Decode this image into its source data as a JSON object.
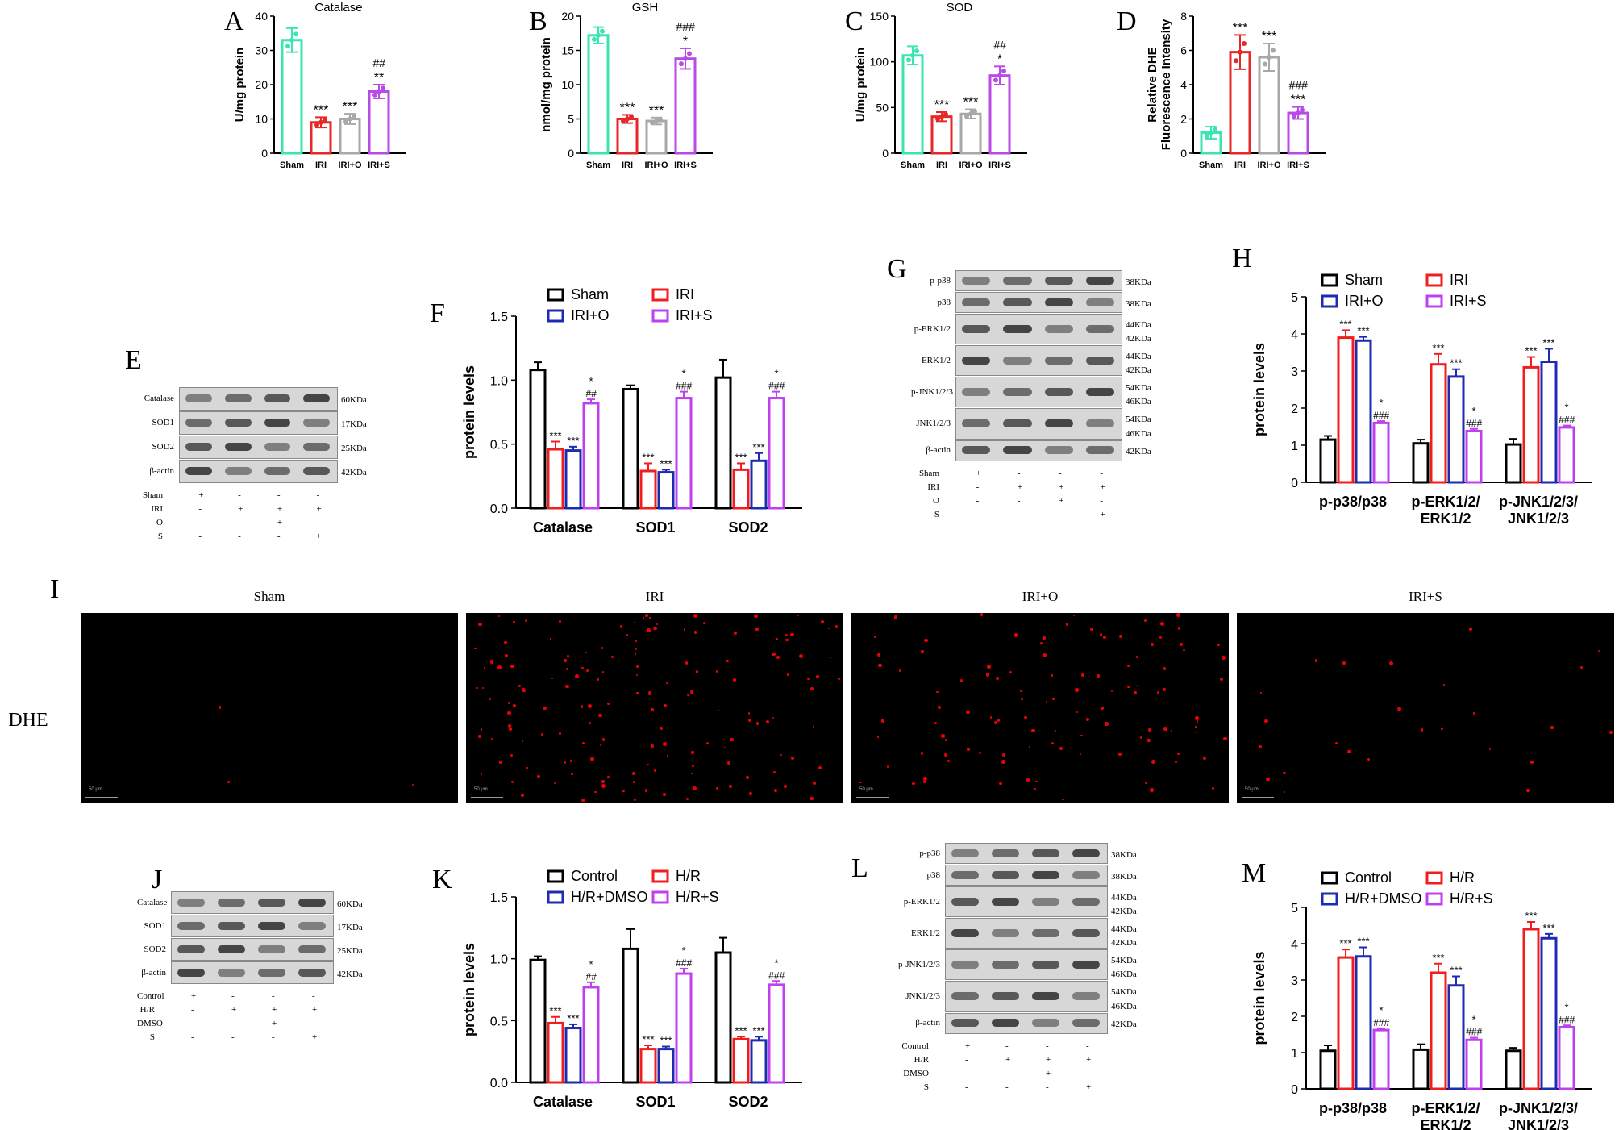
{
  "panels": {
    "A": {
      "letter": "A",
      "title": "Catalase",
      "ylabel": "U/mg protein",
      "ylim": [
        0,
        40
      ],
      "ticks": [
        0,
        10,
        20,
        30,
        40
      ],
      "categories": [
        "Sham",
        "IRI",
        "IRI+O",
        "IRI+S"
      ],
      "values": [
        33,
        9,
        10,
        18
      ],
      "err": [
        3.5,
        1.5,
        1.5,
        2
      ],
      "sig": [
        [
          "",
          ""
        ],
        [
          "***",
          ""
        ],
        [
          "***",
          ""
        ],
        [
          "**",
          "##"
        ]
      ]
    },
    "B": {
      "letter": "B",
      "title": "GSH",
      "ylabel": "nmol/mg protein",
      "ylim": [
        0,
        20
      ],
      "ticks": [
        0,
        5,
        10,
        15,
        20
      ],
      "categories": [
        "Sham",
        "IRI",
        "IRI+O",
        "IRI+S"
      ],
      "values": [
        17.2,
        5,
        4.7,
        13.8
      ],
      "err": [
        1.2,
        0.6,
        0.5,
        1.5
      ],
      "sig": [
        [
          "",
          ""
        ],
        [
          "***",
          ""
        ],
        [
          "***",
          ""
        ],
        [
          "*",
          "###"
        ]
      ]
    },
    "C": {
      "letter": "C",
      "title": "SOD",
      "ylabel": "U/mg protein",
      "ylim": [
        0,
        150
      ],
      "ticks": [
        0,
        50,
        100,
        150
      ],
      "categories": [
        "Sham",
        "IRI",
        "IRI+O",
        "IRI+S"
      ],
      "values": [
        107,
        40,
        43,
        85
      ],
      "err": [
        10,
        5,
        5,
        10
      ],
      "sig": [
        [
          "",
          ""
        ],
        [
          "***",
          ""
        ],
        [
          "***",
          ""
        ],
        [
          "*",
          "##"
        ]
      ]
    },
    "D": {
      "letter": "D",
      "title": "",
      "ylabel": "Relative DHE\nFluorescence Intensity",
      "ylim": [
        0,
        8
      ],
      "ticks": [
        0,
        2,
        4,
        6,
        8
      ],
      "categories": [
        "Sham",
        "IRI",
        "IRI+O",
        "IRI+S"
      ],
      "values": [
        1.2,
        5.9,
        5.6,
        2.35
      ],
      "err": [
        0.35,
        1.0,
        0.8,
        0.35
      ],
      "sig": [
        [
          "",
          ""
        ],
        [
          "***",
          ""
        ],
        [
          "***",
          ""
        ],
        [
          "***",
          "###"
        ]
      ]
    },
    "F": {
      "letter": "F",
      "ylabel": "protein levels",
      "ylim": [
        0,
        1.5
      ],
      "ticks": [
        0.0,
        0.5,
        1.0,
        1.5
      ],
      "groups": [
        "Catalase",
        "SOD1",
        "SOD2"
      ],
      "legend": [
        "Sham",
        "IRI",
        "IRI+O",
        "IRI+S"
      ],
      "series": [
        [
          1.08,
          0.93,
          1.02
        ],
        [
          0.46,
          0.29,
          0.3
        ],
        [
          0.45,
          0.28,
          0.37
        ],
        [
          0.82,
          0.86,
          0.86
        ]
      ],
      "err": [
        [
          0.06,
          0.03,
          0.14
        ],
        [
          0.06,
          0.06,
          0.05
        ],
        [
          0.03,
          0.02,
          0.06
        ],
        [
          0.03,
          0.05,
          0.05
        ]
      ],
      "sig": [
        [
          [
            "",
            ""
          ],
          [
            "",
            ""
          ],
          [
            "",
            ""
          ]
        ],
        [
          [
            "***",
            ""
          ],
          [
            "***",
            ""
          ],
          [
            "***",
            ""
          ]
        ],
        [
          [
            "***",
            ""
          ],
          [
            "***",
            ""
          ],
          [
            "***",
            ""
          ]
        ],
        [
          [
            "*",
            "##"
          ],
          [
            "*",
            "###"
          ],
          [
            "*",
            "###"
          ]
        ]
      ]
    },
    "H": {
      "letter": "H",
      "ylabel": "protein levels",
      "ylim": [
        0,
        5
      ],
      "ticks": [
        0,
        1,
        2,
        3,
        4,
        5
      ],
      "groups": [
        "p-p38/p38",
        "p-ERK1/2/\nERK1/2",
        "p-JNK1/2/3/\nJNK1/2/3"
      ],
      "legend": [
        "Sham",
        "IRI",
        "IRI+O",
        "IRI+S"
      ],
      "series": [
        [
          1.15,
          1.05,
          1.02
        ],
        [
          3.9,
          3.18,
          3.1
        ],
        [
          3.82,
          2.85,
          3.25
        ],
        [
          1.6,
          1.38,
          1.48
        ]
      ],
      "err": [
        [
          0.1,
          0.1,
          0.15
        ],
        [
          0.2,
          0.28,
          0.28
        ],
        [
          0.1,
          0.2,
          0.35
        ],
        [
          0.05,
          0.06,
          0.05
        ]
      ],
      "sig": [
        [
          [
            "",
            ""
          ],
          [
            "",
            ""
          ],
          [
            "",
            ""
          ]
        ],
        [
          [
            "***",
            ""
          ],
          [
            "***",
            ""
          ],
          [
            "***",
            ""
          ]
        ],
        [
          [
            "***",
            ""
          ],
          [
            "***",
            ""
          ],
          [
            "***",
            ""
          ]
        ],
        [
          [
            "*",
            "###"
          ],
          [
            "*",
            "###"
          ],
          [
            "*",
            "###"
          ]
        ]
      ]
    },
    "K": {
      "letter": "K",
      "ylabel": "protein levels",
      "ylim": [
        0,
        1.5
      ],
      "ticks": [
        0.0,
        0.5,
        1.0,
        1.5
      ],
      "groups": [
        "Catalase",
        "SOD1",
        "SOD2"
      ],
      "legend": [
        "Control",
        "H/R",
        "H/R+DMSO",
        "H/R+S"
      ],
      "series": [
        [
          0.99,
          1.08,
          1.05
        ],
        [
          0.48,
          0.27,
          0.35
        ],
        [
          0.44,
          0.27,
          0.34
        ],
        [
          0.77,
          0.88,
          0.79
        ]
      ],
      "err": [
        [
          0.03,
          0.16,
          0.12
        ],
        [
          0.05,
          0.03,
          0.02
        ],
        [
          0.03,
          0.02,
          0.03
        ],
        [
          0.04,
          0.04,
          0.03
        ]
      ],
      "sig": [
        [
          [
            "",
            ""
          ],
          [
            "",
            ""
          ],
          [
            "",
            ""
          ]
        ],
        [
          [
            "***",
            ""
          ],
          [
            "***",
            ""
          ],
          [
            "***",
            ""
          ]
        ],
        [
          [
            "***",
            ""
          ],
          [
            "***",
            ""
          ],
          [
            "***",
            ""
          ]
        ],
        [
          [
            "*",
            "##"
          ],
          [
            "*",
            "###"
          ],
          [
            "*",
            "###"
          ]
        ]
      ]
    },
    "M": {
      "letter": "M",
      "ylabel": "protein levels",
      "ylim": [
        0,
        5
      ],
      "ticks": [
        0,
        1,
        2,
        3,
        4,
        5
      ],
      "groups": [
        "p-p38/p38",
        "p-ERK1/2/\nERK1/2",
        "p-JNK1/2/3/\nJNK1/2/3"
      ],
      "legend": [
        "Control",
        "H/R",
        "H/R+DMSO",
        "H/R+S"
      ],
      "series": [
        [
          1.05,
          1.08,
          1.05
        ],
        [
          3.62,
          3.2,
          4.4
        ],
        [
          3.65,
          2.85,
          4.15
        ],
        [
          1.62,
          1.35,
          1.7
        ]
      ],
      "err": [
        [
          0.15,
          0.15,
          0.08
        ],
        [
          0.22,
          0.25,
          0.2
        ],
        [
          0.25,
          0.25,
          0.12
        ],
        [
          0.05,
          0.06,
          0.05
        ]
      ],
      "sig": [
        [
          [
            "",
            ""
          ],
          [
            "",
            ""
          ],
          [
            "",
            ""
          ]
        ],
        [
          [
            "***",
            ""
          ],
          [
            "***",
            ""
          ],
          [
            "***",
            ""
          ]
        ],
        [
          [
            "***",
            ""
          ],
          [
            "***",
            ""
          ],
          [
            "***",
            ""
          ]
        ],
        [
          [
            "*",
            "###"
          ],
          [
            "*",
            "###"
          ],
          [
            "*",
            "###"
          ]
        ]
      ]
    }
  },
  "colors": {
    "single": [
      "#3be4b0",
      "#e62828",
      "#a8a8a8",
      "#b84ae6"
    ],
    "grouped": [
      "#000000",
      "#f01e1e",
      "#1c2bb0",
      "#c040f0"
    ]
  },
  "westerns": {
    "E": {
      "letter": "E",
      "rows": [
        "Catalase",
        "SOD1",
        "SOD2",
        "β-actin"
      ],
      "kda": [
        "60KDa",
        "17KDa",
        "25KDa",
        "42KDa"
      ],
      "conds": [
        "Sham",
        "IRI",
        "O",
        "S"
      ],
      "signs": [
        [
          "+",
          "-",
          "-",
          "-"
        ],
        [
          "-",
          "+",
          "+",
          "+"
        ],
        [
          "-",
          "-",
          "+",
          "-"
        ],
        [
          "-",
          "-",
          "-",
          "+"
        ]
      ]
    },
    "G": {
      "letter": "G",
      "rows": [
        "p-p38",
        "p38",
        "p-ERK1/2",
        "ERK1/2",
        "p-JNK1/2/3",
        "JNK1/2/3",
        "β-actin"
      ],
      "kda": [
        "38KDa",
        "38KDa",
        "44KDa\n42KDa",
        "44KDa\n42KDa",
        "54KDa\n46KDa",
        "54KDa\n46KDa",
        "42KDa"
      ],
      "conds": [
        "Sham",
        "IRI",
        "O",
        "S"
      ],
      "signs": [
        [
          "+",
          "-",
          "-",
          "-"
        ],
        [
          "-",
          "+",
          "+",
          "+"
        ],
        [
          "-",
          "-",
          "+",
          "-"
        ],
        [
          "-",
          "-",
          "-",
          "+"
        ]
      ]
    },
    "J": {
      "letter": "J",
      "rows": [
        "Catalase",
        "SOD1",
        "SOD2",
        "β-actin"
      ],
      "kda": [
        "60KDa",
        "17KDa",
        "25KDa",
        "42KDa"
      ],
      "conds": [
        "Control",
        "H/R",
        "DMSO",
        "S"
      ],
      "signs": [
        [
          "+",
          "-",
          "-",
          "-"
        ],
        [
          "-",
          "+",
          "+",
          "+"
        ],
        [
          "-",
          "-",
          "+",
          "-"
        ],
        [
          "-",
          "-",
          "-",
          "+"
        ]
      ]
    },
    "L": {
      "letter": "L",
      "rows": [
        "p-p38",
        "p38",
        "p-ERK1/2",
        "ERK1/2",
        "p-JNK1/2/3",
        "JNK1/2/3",
        "β-actin"
      ],
      "kda": [
        "38KDa",
        "38KDa",
        "44KDa\n42KDa",
        "44KDa\n42KDa",
        "54KDa\n46KDa",
        "54KDa\n46KDa",
        "42KDa"
      ],
      "conds": [
        "Control",
        "H/R",
        "DMSO",
        "S"
      ],
      "signs": [
        [
          "+",
          "-",
          "-",
          "-"
        ],
        [
          "-",
          "+",
          "+",
          "+"
        ],
        [
          "-",
          "-",
          "+",
          "-"
        ],
        [
          "-",
          "-",
          "-",
          "+"
        ]
      ]
    }
  },
  "dhe": {
    "letter": "I",
    "row_label": "DHE",
    "titles": [
      "Sham",
      "IRI",
      "IRI+O",
      "IRI+S"
    ],
    "scale_label": "50 μm",
    "density": [
      3,
      160,
      110,
      25
    ]
  }
}
